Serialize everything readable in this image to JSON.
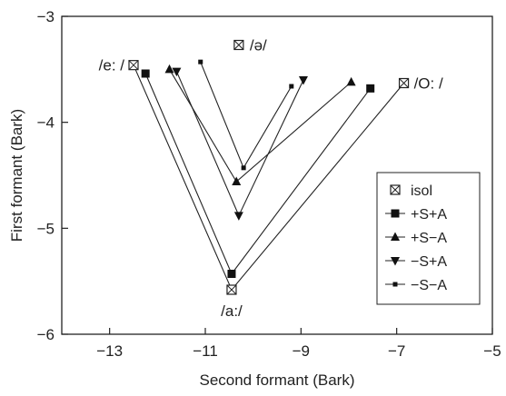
{
  "chart_data": {
    "type": "line",
    "xlabel": "Second formant (Bark)",
    "ylabel": "First formant (Bark)",
    "xlim": [
      -14,
      -5
    ],
    "ylim": [
      -6,
      -3
    ],
    "xticks": [
      -13,
      -11,
      -9,
      -7,
      -5
    ],
    "yticks": [
      -6,
      -5,
      -4,
      -3
    ],
    "x_tick_labels": [
      "−13",
      "−11",
      "−9",
      "−7",
      "−5"
    ],
    "y_tick_labels": [
      "−6",
      "−5",
      "−4",
      "−3"
    ],
    "grid": false,
    "legend_position": "right",
    "series": [
      {
        "name": "isol",
        "marker": "boxcross",
        "points": [
          [
            -12.5,
            -3.46
          ],
          [
            -10.45,
            -5.58
          ],
          [
            -6.85,
            -3.63
          ]
        ]
      },
      {
        "name": "+S+A",
        "marker": "square",
        "points": [
          [
            -12.25,
            -3.54
          ],
          [
            -10.45,
            -5.43
          ],
          [
            -7.55,
            -3.68
          ]
        ]
      },
      {
        "name": "+S−A",
        "marker": "triangle-up",
        "points": [
          [
            -11.75,
            -3.5
          ],
          [
            -10.35,
            -4.56
          ],
          [
            -7.95,
            -3.62
          ]
        ]
      },
      {
        "name": "−S+A",
        "marker": "triangle-down",
        "points": [
          [
            -11.6,
            -3.52
          ],
          [
            -10.3,
            -4.88
          ],
          [
            -8.95,
            -3.6
          ]
        ]
      },
      {
        "name": "−S−A",
        "marker": "small-square",
        "points": [
          [
            -11.1,
            -3.43
          ],
          [
            -10.2,
            -4.43
          ],
          [
            -9.2,
            -3.66
          ]
        ]
      }
    ],
    "annotations": [
      {
        "text": "/ə/",
        "x": -10.3,
        "y": -3.27,
        "marker": "boxcross"
      },
      {
        "text": "/e: /",
        "x": -12.5,
        "y": -3.46
      },
      {
        "text": "/O: /",
        "x": -6.85,
        "y": -3.63
      },
      {
        "text": "/a:/",
        "x": -10.45,
        "y": -5.58
      }
    ]
  }
}
